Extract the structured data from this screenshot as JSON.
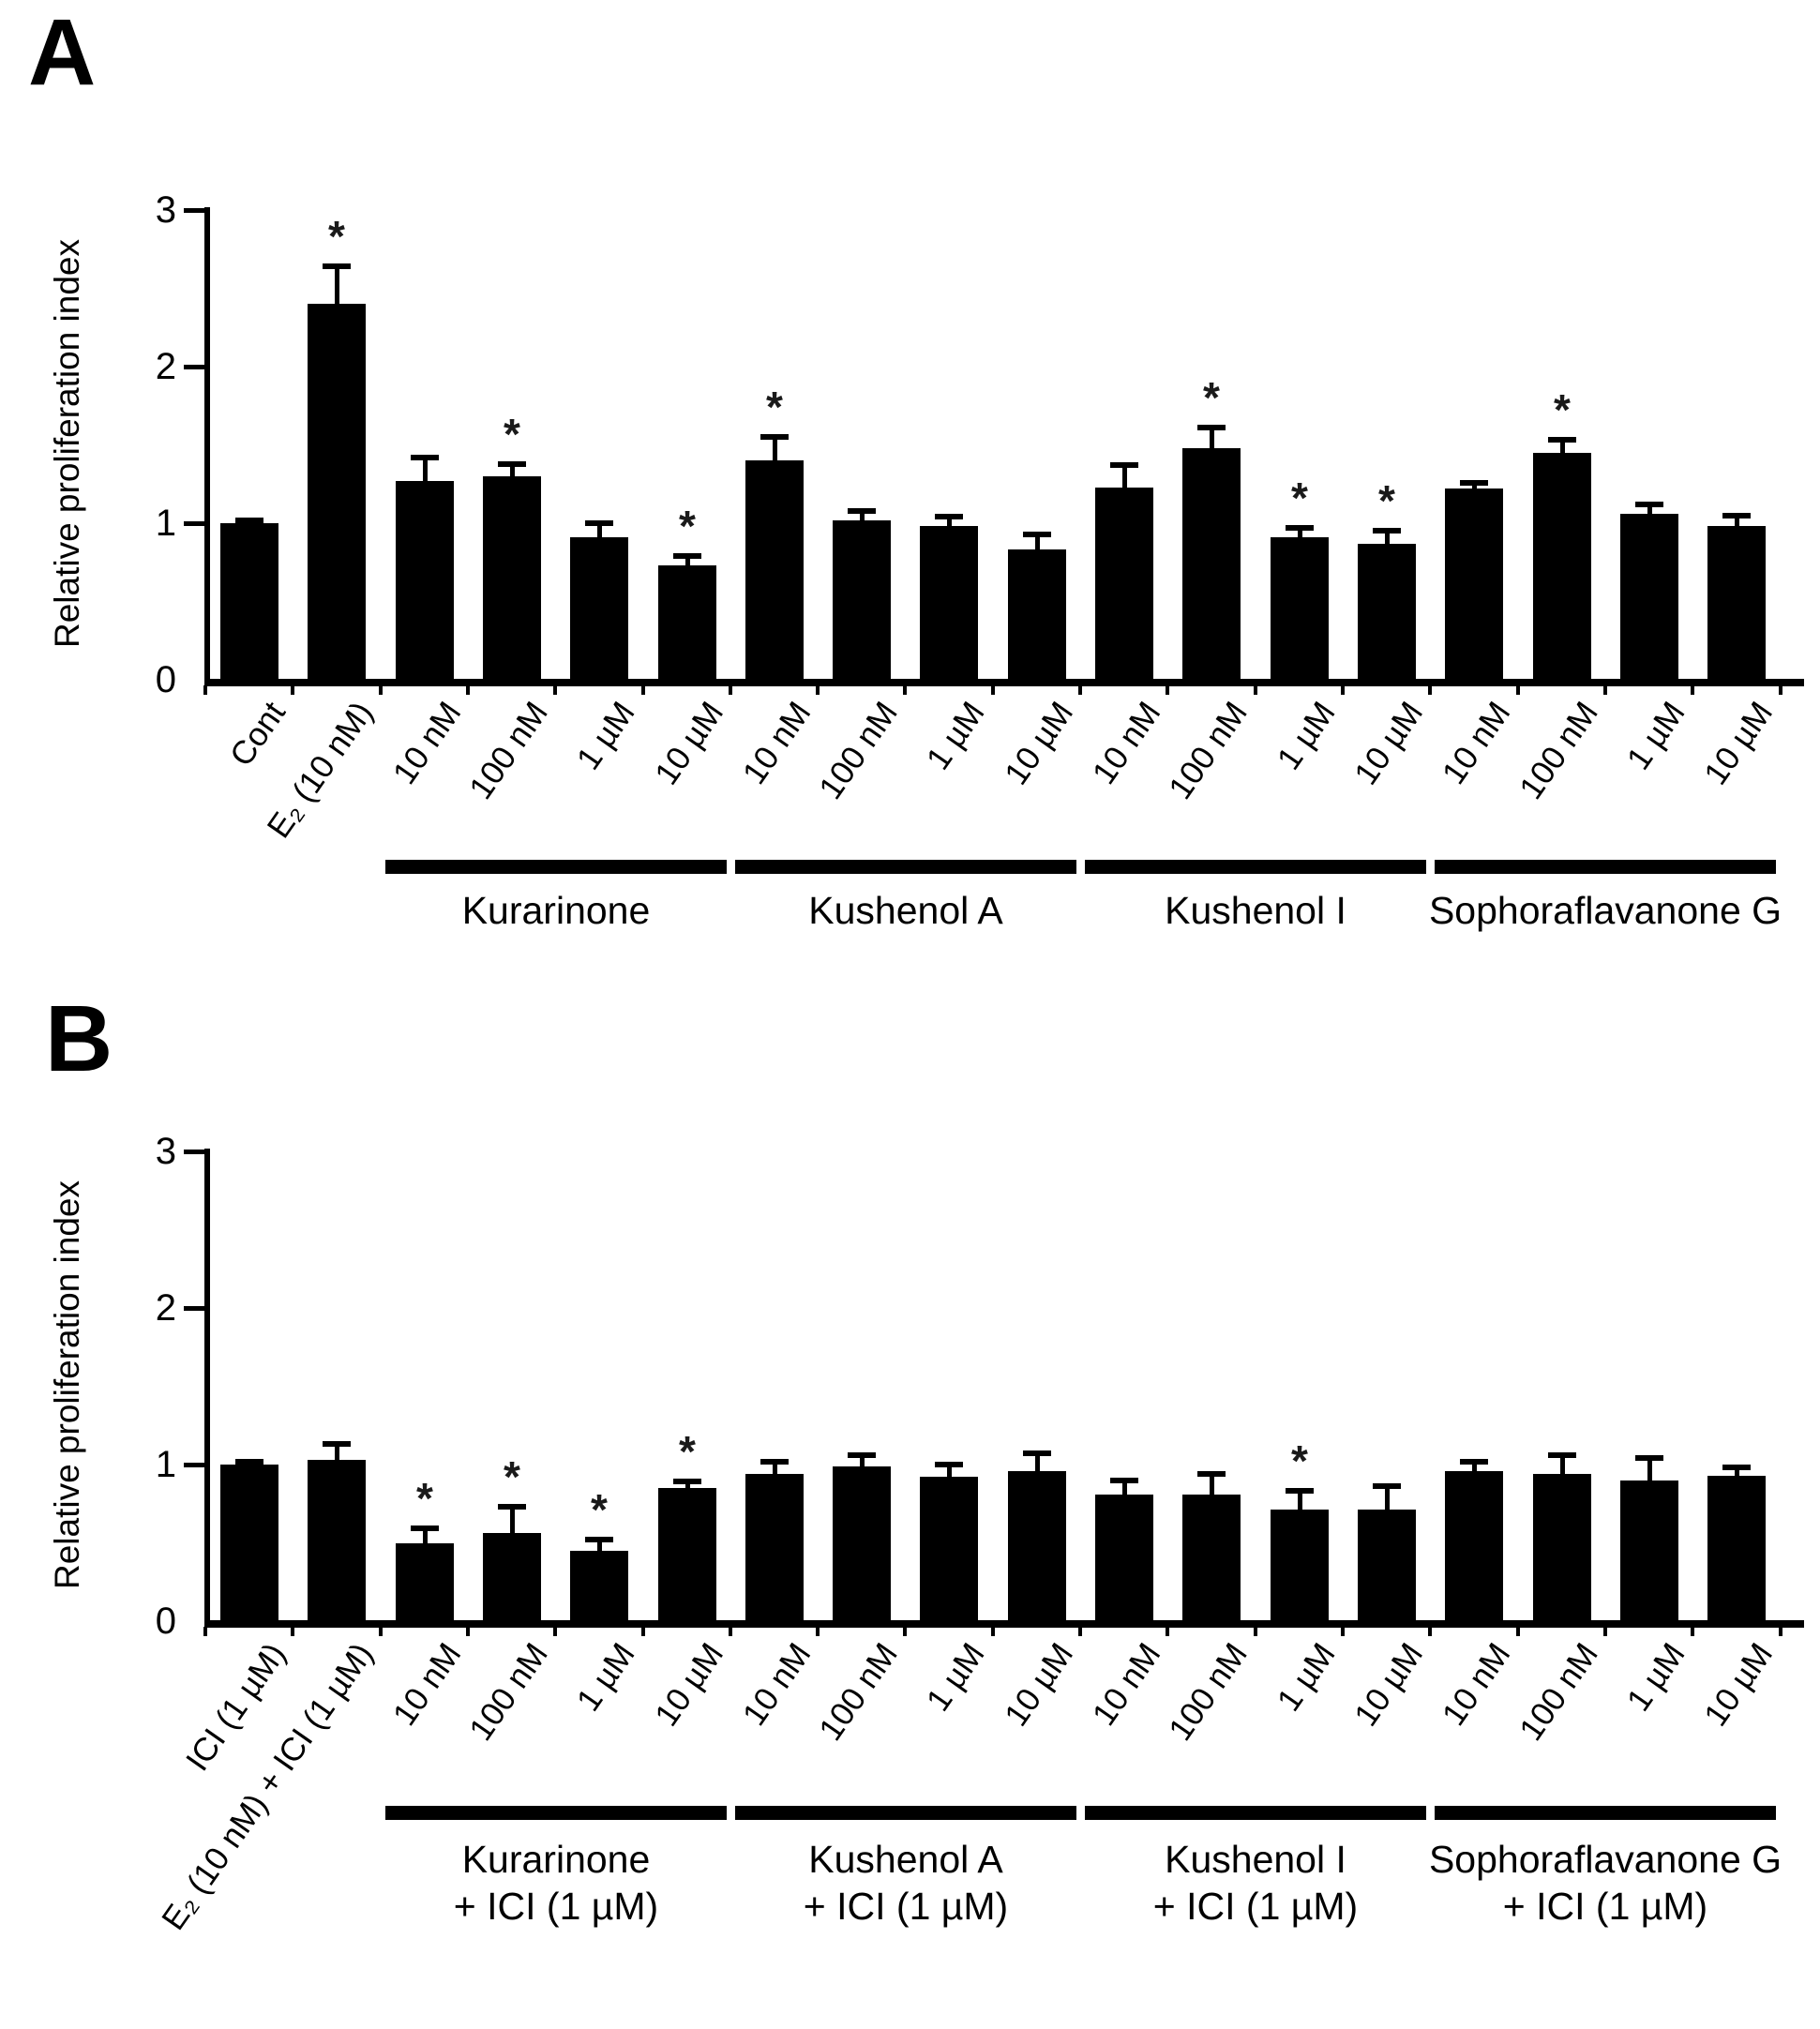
{
  "figure": {
    "significance_marker": "*",
    "background_color": "#ffffff",
    "bar_color": "#000000",
    "axis_color": "#000000"
  },
  "chart_data": [
    {
      "type": "bar",
      "panel_label": "A",
      "ylabel": "Relative proliferation index",
      "ylim": [
        0,
        3
      ],
      "yticks": [
        0,
        1,
        2,
        3
      ],
      "grid": false,
      "legend": "none",
      "categories": [
        "Cont",
        "E₂ (10 nM)",
        "10 nM",
        "100 nM",
        "1 µM",
        "10 µM",
        "10 nM",
        "100 nM",
        "1 µM",
        "10 µM",
        "10 nM",
        "100 nM",
        "1 µM",
        "10 µM",
        "10 nM",
        "100 nM",
        "1 µM",
        "10 µM"
      ],
      "values": [
        1.0,
        2.4,
        1.27,
        1.3,
        0.91,
        0.73,
        1.4,
        1.02,
        0.98,
        0.83,
        1.23,
        1.48,
        0.91,
        0.87,
        1.22,
        1.45,
        1.06,
        0.98
      ],
      "errors": [
        0.02,
        0.24,
        0.15,
        0.08,
        0.09,
        0.06,
        0.15,
        0.06,
        0.06,
        0.1,
        0.14,
        0.13,
        0.06,
        0.08,
        0.04,
        0.08,
        0.06,
        0.07
      ],
      "significant": [
        false,
        true,
        false,
        true,
        false,
        true,
        true,
        false,
        false,
        false,
        false,
        true,
        true,
        true,
        false,
        true,
        false,
        false
      ],
      "groups": [
        {
          "name": "Kurarinone",
          "line2": "",
          "from": 2,
          "to": 5
        },
        {
          "name": "Kushenol A",
          "line2": "",
          "from": 6,
          "to": 9
        },
        {
          "name": "Kushenol I",
          "line2": "",
          "from": 10,
          "to": 13
        },
        {
          "name": "Sophoraflavanone G",
          "line2": "",
          "from": 14,
          "to": 17
        }
      ]
    },
    {
      "type": "bar",
      "panel_label": "B",
      "ylabel": "Relative proliferation index",
      "ylim": [
        0,
        3
      ],
      "yticks": [
        0,
        1,
        2,
        3
      ],
      "grid": false,
      "legend": "none",
      "categories": [
        "ICI (1 µM)",
        "E₂ (10 nM) + ICI (1 µM)",
        "10 nM",
        "100 nM",
        "1 µM",
        "10 µM",
        "10 nM",
        "100 nM",
        "1 µM",
        "10 µM",
        "10 nM",
        "100 nM",
        "1 µM",
        "10 µM",
        "10 nM",
        "100 nM",
        "1 µM",
        "10 µM"
      ],
      "values": [
        1.0,
        1.03,
        0.5,
        0.56,
        0.45,
        0.85,
        0.94,
        0.99,
        0.92,
        0.96,
        0.81,
        0.81,
        0.71,
        0.71,
        0.96,
        0.94,
        0.9,
        0.93
      ],
      "errors": [
        0.02,
        0.1,
        0.09,
        0.17,
        0.07,
        0.04,
        0.08,
        0.07,
        0.08,
        0.11,
        0.09,
        0.13,
        0.12,
        0.15,
        0.06,
        0.12,
        0.14,
        0.05
      ],
      "significant": [
        false,
        false,
        true,
        true,
        true,
        true,
        false,
        false,
        false,
        false,
        false,
        false,
        true,
        false,
        false,
        false,
        false,
        false
      ],
      "groups": [
        {
          "name": "Kurarinone",
          "line2": "+ ICI (1 µM)",
          "from": 2,
          "to": 5
        },
        {
          "name": "Kushenol A",
          "line2": "+ ICI (1 µM)",
          "from": 6,
          "to": 9
        },
        {
          "name": "Kushenol I",
          "line2": "+ ICI (1 µM)",
          "from": 10,
          "to": 13
        },
        {
          "name": "Sophoraflavanone G",
          "line2": "+ ICI (1 µM)",
          "from": 14,
          "to": 17
        }
      ]
    }
  ]
}
